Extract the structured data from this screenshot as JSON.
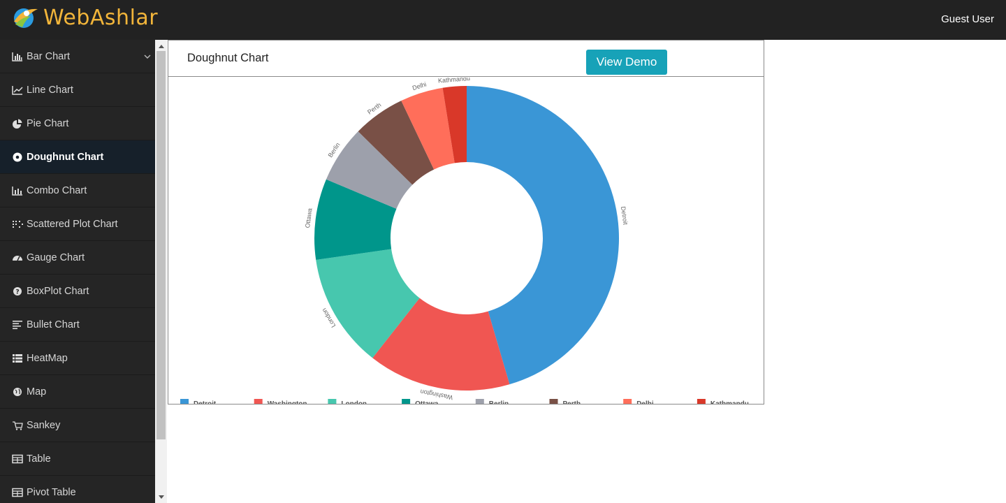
{
  "app": {
    "brand": "WebAshlar",
    "user": "Guest User"
  },
  "sidebar": {
    "items": [
      {
        "label": "Bar Chart",
        "icon": "bar-chart-icon",
        "active": false
      },
      {
        "label": "Line Chart",
        "icon": "line-chart-icon",
        "active": false
      },
      {
        "label": "Pie Chart",
        "icon": "pie-chart-icon",
        "active": false
      },
      {
        "label": "Doughnut Chart",
        "icon": "doughnut-icon",
        "active": true
      },
      {
        "label": "Combo Chart",
        "icon": "combo-chart-icon",
        "active": false
      },
      {
        "label": "Scattered Plot Chart",
        "icon": "scatter-icon",
        "active": false
      },
      {
        "label": "Gauge Chart",
        "icon": "gauge-icon",
        "active": false
      },
      {
        "label": "BoxPlot Chart",
        "icon": "question-circle-icon",
        "active": false
      },
      {
        "label": "Bullet Chart",
        "icon": "align-left-icon",
        "active": false
      },
      {
        "label": "HeatMap",
        "icon": "list-icon",
        "active": false
      },
      {
        "label": "Map",
        "icon": "globe-icon",
        "active": false
      },
      {
        "label": "Sankey",
        "icon": "cart-icon",
        "active": false
      },
      {
        "label": "Table",
        "icon": "table-icon",
        "active": false
      },
      {
        "label": "Pivot Table",
        "icon": "table-icon",
        "active": false
      }
    ]
  },
  "panel": {
    "title": "Doughnut Chart",
    "demo_label": "View Demo"
  },
  "chart_data": {
    "type": "doughnut",
    "categories": [
      "Detroit",
      "Washington",
      "London",
      "Ottawa",
      "Berlin",
      "Perth",
      "Delhi",
      "Kathmandu"
    ],
    "values": [
      45,
      15,
      12,
      8.5,
      6,
      5.5,
      4.5,
      2.5
    ],
    "colors": [
      "#3a96d6",
      "#f05652",
      "#47c7ae",
      "#00968b",
      "#9da0ab",
      "#795046",
      "#ff6e5a",
      "#d93829"
    ],
    "legend_position": "bottom"
  }
}
